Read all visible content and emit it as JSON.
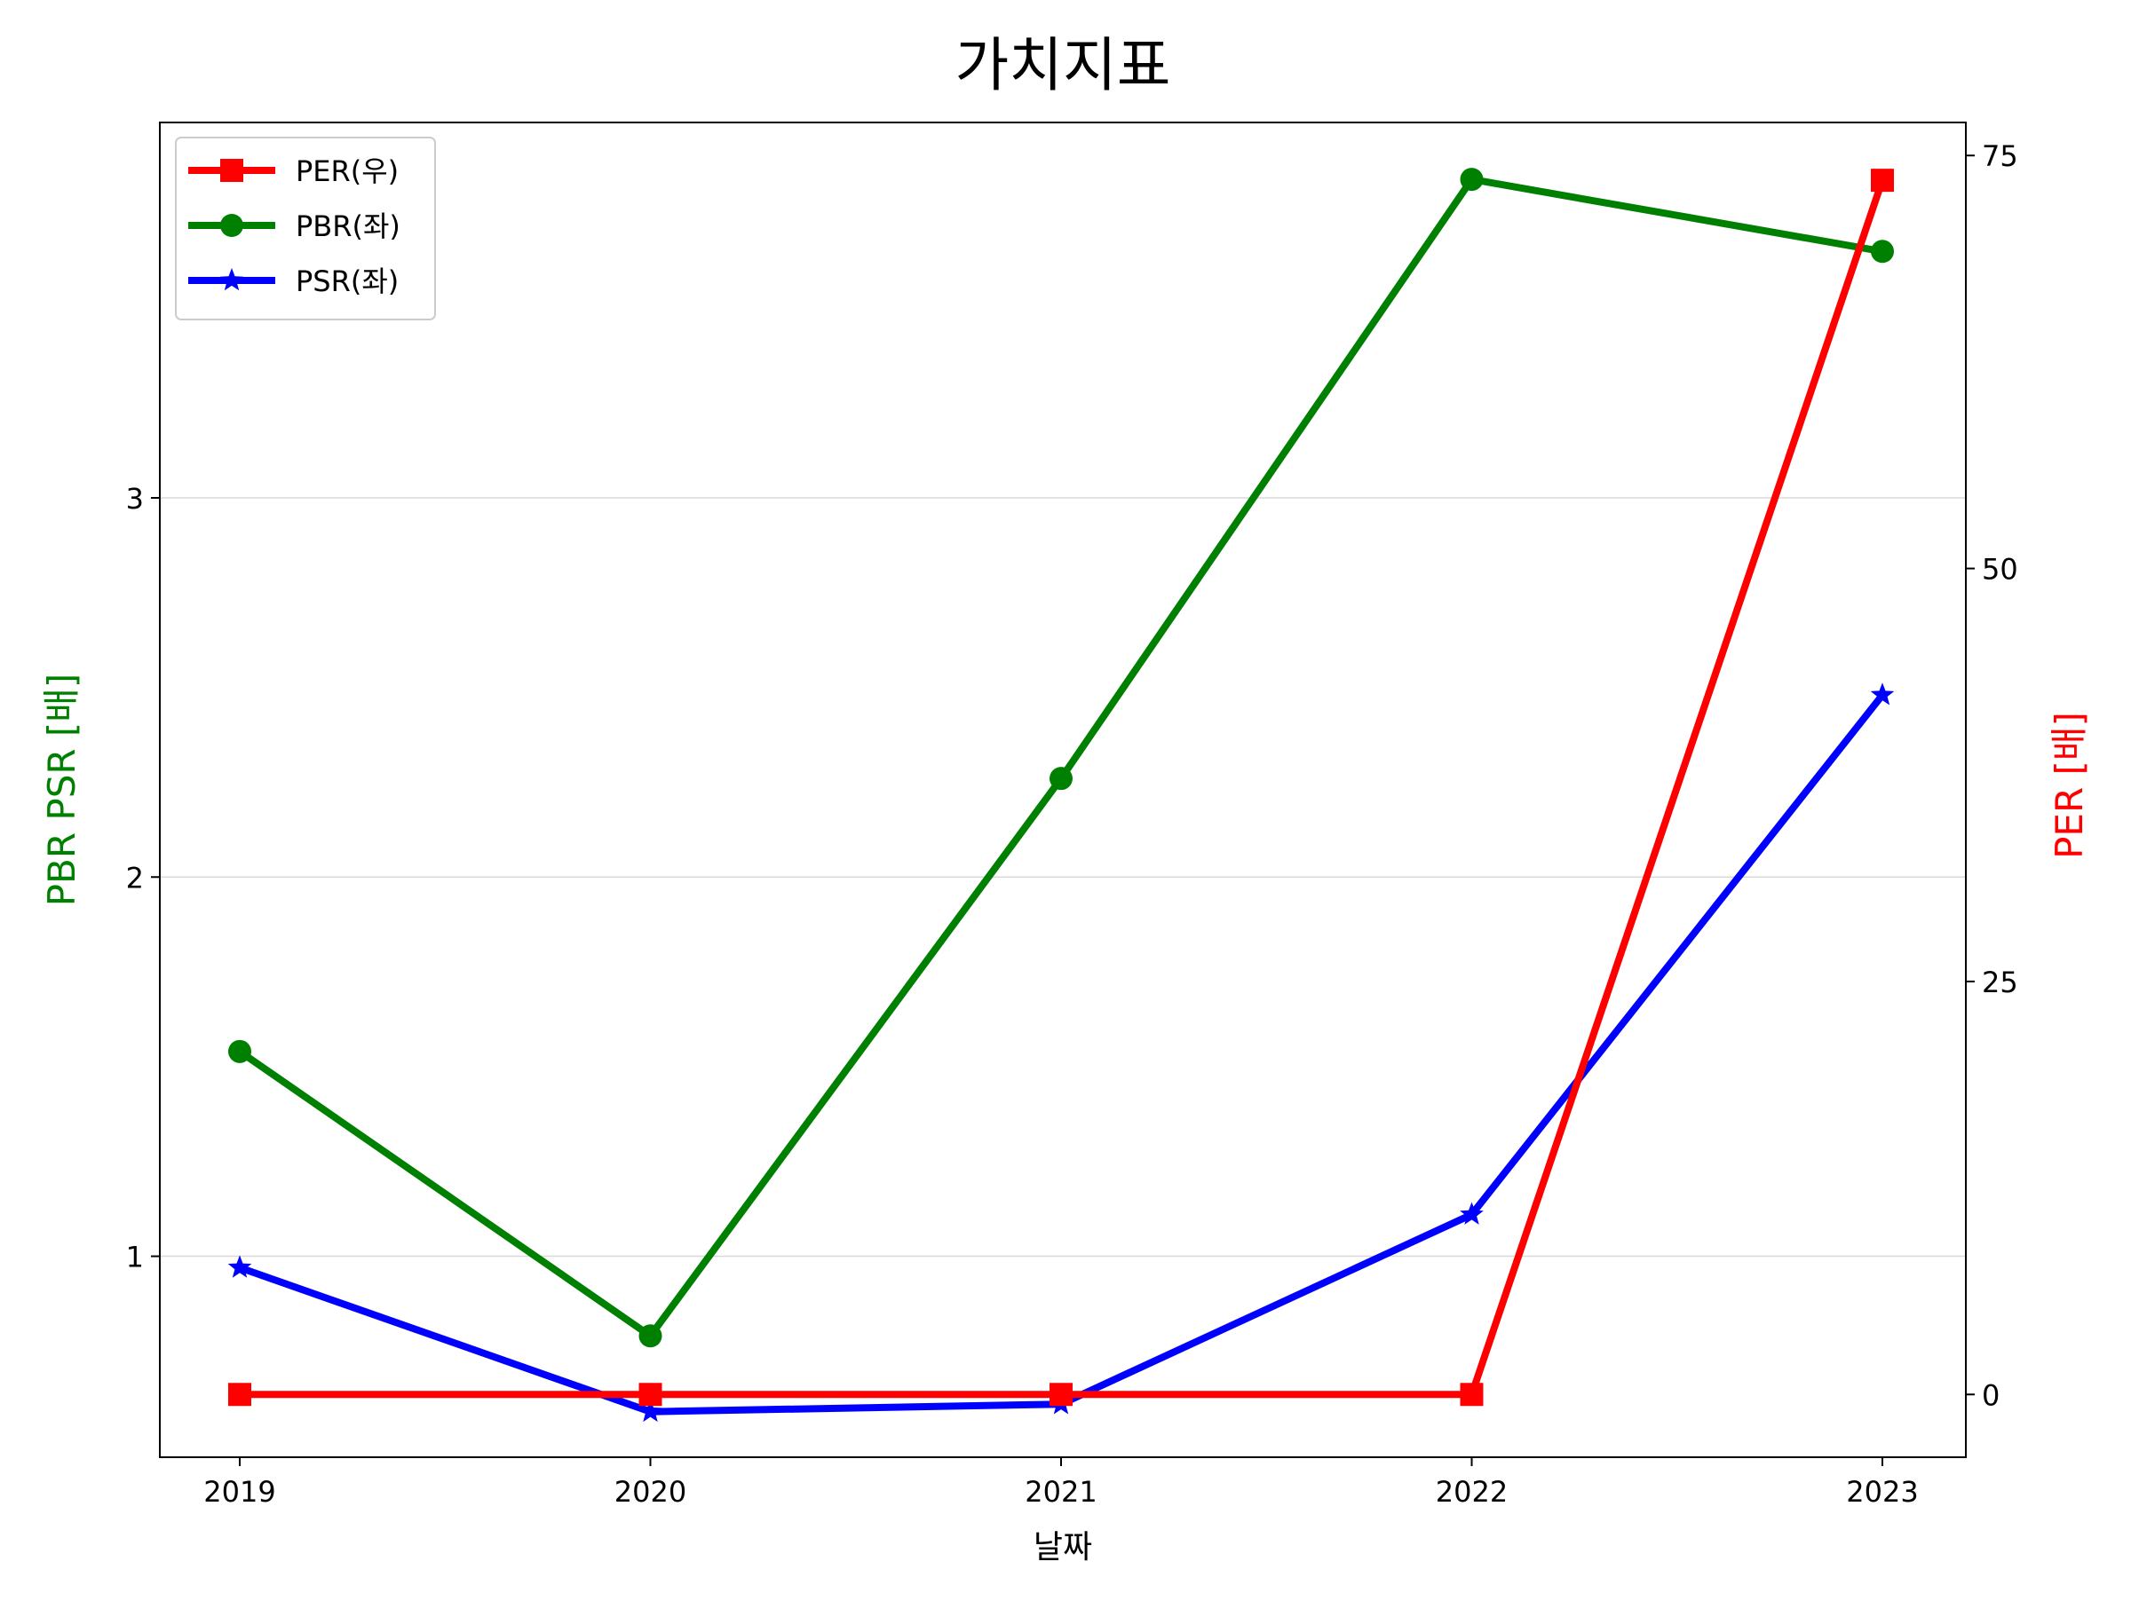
{
  "chart_data": {
    "type": "line",
    "title": "가치지표",
    "xlabel": "날짜",
    "ylabel_left": "PBR PSR [배]",
    "ylabel_right": "PER [배]",
    "categories": [
      "2019",
      "2020",
      "2021",
      "2022",
      "2023"
    ],
    "ylim_left": [
      0.47,
      3.99
    ],
    "ylim_right": [
      -3.8,
      77.0
    ],
    "yticks_left": [
      1,
      2,
      3
    ],
    "yticks_right": [
      0,
      25,
      50,
      75
    ],
    "grid": "horizontal (left axis)",
    "legend_position": "top-left",
    "series": [
      {
        "name": "PER(우)",
        "axis": "right",
        "color": "#ff0000",
        "marker": "square",
        "values": [
          0,
          0,
          0,
          0,
          73.5
        ]
      },
      {
        "name": "PBR(좌)",
        "axis": "left",
        "color": "#008000",
        "marker": "circle",
        "values": [
          1.54,
          0.79,
          2.26,
          3.84,
          3.65
        ]
      },
      {
        "name": "PSR(좌)",
        "axis": "left",
        "color": "#0000ff",
        "marker": "star",
        "values": [
          0.97,
          0.59,
          0.61,
          1.11,
          2.48
        ]
      }
    ]
  }
}
